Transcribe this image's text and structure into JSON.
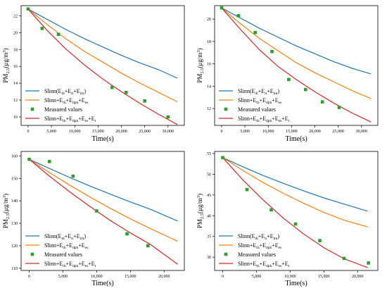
{
  "chart_data": [
    {
      "type": "line",
      "xlabel": "Time(s)",
      "ylabel": "PM2.5(μg/m3)",
      "ylabel_parts": {
        "main": "PM",
        "sub": "2.5",
        "unit": "(μg/m",
        "sup": "3",
        "close": ")"
      },
      "xlim": [
        -1500,
        33500
      ],
      "ylim": [
        9,
        23.2
      ],
      "xticks": [
        0,
        5000,
        10000,
        15000,
        20000,
        25000,
        30000
      ],
      "xtick_labels": [
        "0",
        "5,000",
        "10,000",
        "15,000",
        "20,000",
        "25,000",
        "30,000"
      ],
      "yticks": [
        10,
        12,
        14,
        16,
        18,
        20,
        22
      ],
      "ytick_labels": [
        "10",
        "12",
        "14",
        "16",
        "18",
        "20",
        "22"
      ],
      "legend_position": "bottom-left",
      "series": [
        {
          "name": "Slinn(E_di+E_it+E_im)",
          "kind": "line",
          "color": "#1f77b4",
          "x": [
            0,
            4000,
            8000,
            12000,
            16000,
            20000,
            24000,
            28000,
            32000
          ],
          "y": [
            22.8,
            21.6,
            20.4,
            19.3,
            18.3,
            17.3,
            16.4,
            15.6,
            14.6
          ]
        },
        {
          "name": "Slinn+E_th+E_dph+E_es",
          "kind": "line",
          "color": "#ff7f0e",
          "x": [
            0,
            4000,
            8000,
            12000,
            16000,
            20000,
            24000,
            28000,
            32000
          ],
          "y": [
            22.8,
            21.0,
            19.3,
            17.8,
            16.5,
            15.2,
            14.0,
            12.9,
            11.8
          ]
        },
        {
          "name": "Measured values",
          "kind": "scatter",
          "color": "#2ca02c",
          "x": [
            0,
            3000,
            6500,
            18000,
            21000,
            25000,
            30000
          ],
          "y": [
            22.8,
            20.5,
            19.8,
            13.5,
            12.9,
            11.9,
            10.0
          ]
        },
        {
          "name": "Slinn+E_th+E_dph+E_es+E_t",
          "kind": "line",
          "color": "#d62728",
          "x": [
            0,
            4000,
            8000,
            12000,
            16000,
            20000,
            24000,
            28000,
            32000
          ],
          "y": [
            22.8,
            20.3,
            18.1,
            16.2,
            14.5,
            13.0,
            11.6,
            10.3,
            9.1
          ]
        }
      ]
    },
    {
      "type": "line",
      "xlabel": "Time(s)",
      "ylabel": "PM2.5(μg/m3)",
      "ylabel_parts": {
        "main": "PM",
        "sub": "2.5",
        "unit": "(μg/m",
        "sup": "3",
        "close": ")"
      },
      "xlim": [
        -1500,
        33500
      ],
      "ylim": [
        10.5,
        21.2
      ],
      "xticks": [
        0,
        5000,
        10000,
        15000,
        20000,
        25000,
        30000
      ],
      "xtick_labels": [
        "0",
        "5,000",
        "10,000",
        "15,000",
        "20,000",
        "25,000",
        "30,000"
      ],
      "yticks": [
        12,
        14,
        16,
        18,
        20
      ],
      "ytick_labels": [
        "12",
        "14",
        "16",
        "18",
        "20"
      ],
      "legend_position": "bottom-left",
      "series": [
        {
          "name": "Slinn(E_di+E_it+E_im)",
          "kind": "line",
          "color": "#1f77b4",
          "x": [
            0,
            4000,
            8000,
            12000,
            16000,
            20000,
            24000,
            28000,
            32000
          ],
          "y": [
            21.0,
            20.1,
            19.2,
            18.4,
            17.6,
            16.9,
            16.2,
            15.6,
            15.1
          ]
        },
        {
          "name": "Slinn+E_th+E_dph+E_es",
          "kind": "line",
          "color": "#ff7f0e",
          "x": [
            0,
            4000,
            8000,
            12000,
            16000,
            20000,
            24000,
            28000,
            32000
          ],
          "y": [
            21.0,
            19.6,
            18.3,
            17.2,
            16.1,
            15.2,
            14.4,
            13.6,
            12.9
          ]
        },
        {
          "name": "Measured values",
          "kind": "scatter",
          "color": "#2ca02c",
          "x": [
            0,
            3600,
            7200,
            10800,
            14400,
            18000,
            21600,
            25200
          ],
          "y": [
            21.0,
            20.3,
            18.8,
            17.1,
            14.6,
            13.7,
            12.6,
            12.1
          ]
        },
        {
          "name": "Slinn+E_th+E_dph+E_es+E_t",
          "kind": "line",
          "color": "#d62728",
          "x": [
            0,
            4000,
            8000,
            12000,
            16000,
            20000,
            24000,
            28000,
            32000
          ],
          "y": [
            21.0,
            19.1,
            17.3,
            15.8,
            14.6,
            13.5,
            12.5,
            11.6,
            10.8
          ]
        }
      ]
    },
    {
      "type": "line",
      "xlabel": "Time(s)",
      "ylabel": "PM2.5(μg/m3)",
      "ylabel_parts": {
        "main": "PM",
        "sub": "2.5",
        "unit": "(μg/m",
        "sup": "3",
        "close": ")"
      },
      "xlim": [
        -1200,
        23000
      ],
      "ylim": [
        109,
        162
      ],
      "xticks": [
        0,
        5000,
        10000,
        15000,
        20000
      ],
      "xtick_labels": [
        "0",
        "5,000",
        "10,000",
        "15,000",
        "20,000"
      ],
      "yticks": [
        110,
        120,
        130,
        140,
        150,
        160
      ],
      "ytick_labels": [
        "110",
        "120",
        "130",
        "140",
        "150",
        "160"
      ],
      "legend_position": "bottom-left",
      "series": [
        {
          "name": "Slinn(E_di+E_it+E_im)",
          "kind": "line",
          "color": "#1f77b4",
          "x": [
            0,
            3000,
            6000,
            9000,
            12000,
            15000,
            18000,
            22000
          ],
          "y": [
            158.5,
            154.4,
            150.4,
            146.6,
            143.0,
            139.5,
            136.2,
            131.0
          ]
        },
        {
          "name": "Slinn+E_th+E_dph+E_es",
          "kind": "line",
          "color": "#ff7f0e",
          "x": [
            0,
            3000,
            6000,
            9000,
            12000,
            15000,
            18000,
            22000
          ],
          "y": [
            158.5,
            152.6,
            147.0,
            141.7,
            136.7,
            132.0,
            127.6,
            122.0
          ]
        },
        {
          "name": "Measured values",
          "kind": "scatter",
          "color": "#2ca02c",
          "x": [
            0,
            3000,
            6500,
            10000,
            14500,
            17600
          ],
          "y": [
            158.5,
            157.5,
            151.0,
            135.5,
            125.3,
            120.0
          ]
        },
        {
          "name": "Slinn+E_th+E_dph+E_es+E_t",
          "kind": "line",
          "color": "#d62728",
          "x": [
            0,
            3000,
            6000,
            9000,
            12000,
            15000,
            18000,
            22000
          ],
          "y": [
            158.5,
            151.0,
            144.0,
            137.5,
            131.3,
            125.7,
            120.5,
            111.8
          ]
        }
      ]
    },
    {
      "type": "line",
      "xlabel": "Time(s)",
      "ylabel": "PM2.5(μg/m3)",
      "ylabel_parts": {
        "main": "PM",
        "sub": "2.5",
        "unit": "(μg/m",
        "sup": "3",
        "close": ")"
      },
      "xlim": [
        -1200,
        23000
      ],
      "ylim": [
        26.8,
        55.5
      ],
      "xticks": [
        0,
        5000,
        10000,
        15000,
        20000
      ],
      "xtick_labels": [
        "0",
        "5,000",
        "10,000",
        "15,000",
        "20,000"
      ],
      "yticks": [
        30,
        35,
        40,
        45,
        50,
        55
      ],
      "ytick_labels": [
        "30",
        "35",
        "40",
        "45",
        "50",
        "55"
      ],
      "legend_position": "bottom-left",
      "series": [
        {
          "name": "Slinn(E_di+E_it+E_im)",
          "kind": "line",
          "color": "#1f77b4",
          "x": [
            0,
            3000,
            6000,
            9000,
            12000,
            15000,
            18000,
            21500
          ],
          "y": [
            54.0,
            51.8,
            49.7,
            47.8,
            46.0,
            44.3,
            42.8,
            41.1
          ]
        },
        {
          "name": "Slinn+E_th+E_dph+E_es",
          "kind": "line",
          "color": "#ff7f0e",
          "x": [
            0,
            3000,
            6000,
            9000,
            12000,
            15000,
            18000,
            21500
          ],
          "y": [
            54.0,
            50.9,
            48.0,
            45.4,
            43.0,
            40.8,
            38.9,
            37.3
          ]
        },
        {
          "name": "Measured values",
          "kind": "scatter",
          "color": "#2ca02c",
          "x": [
            0,
            3600,
            7200,
            10800,
            14400,
            18000,
            21600
          ],
          "y": [
            54.0,
            46.3,
            41.4,
            38.0,
            34.0,
            29.7,
            28.6
          ]
        },
        {
          "name": "Slinn+E_th+E_dph+E_es+E_t",
          "kind": "line",
          "color": "#d62728",
          "x": [
            0,
            3000,
            6000,
            9000,
            12000,
            15000,
            18000,
            21500
          ],
          "y": [
            54.0,
            48.6,
            43.8,
            39.4,
            35.6,
            32.3,
            29.6,
            27.5
          ]
        }
      ]
    }
  ],
  "legend_labels": [
    {
      "base": "Slinn(E",
      "parts": [
        [
          "di",
          "+E"
        ],
        [
          "it",
          "+E"
        ],
        [
          "im",
          ")"
        ]
      ]
    },
    {
      "base": "Slinn+E",
      "parts": [
        [
          "th",
          "+E"
        ],
        [
          "dph",
          "+E"
        ],
        [
          "es",
          ""
        ]
      ]
    },
    {
      "base": "Measured values",
      "parts": []
    },
    {
      "base": "Slinn+E",
      "parts": [
        [
          "th",
          "+E"
        ],
        [
          "dph",
          "+E"
        ],
        [
          "es",
          "+E"
        ],
        [
          "t",
          ""
        ]
      ]
    }
  ]
}
